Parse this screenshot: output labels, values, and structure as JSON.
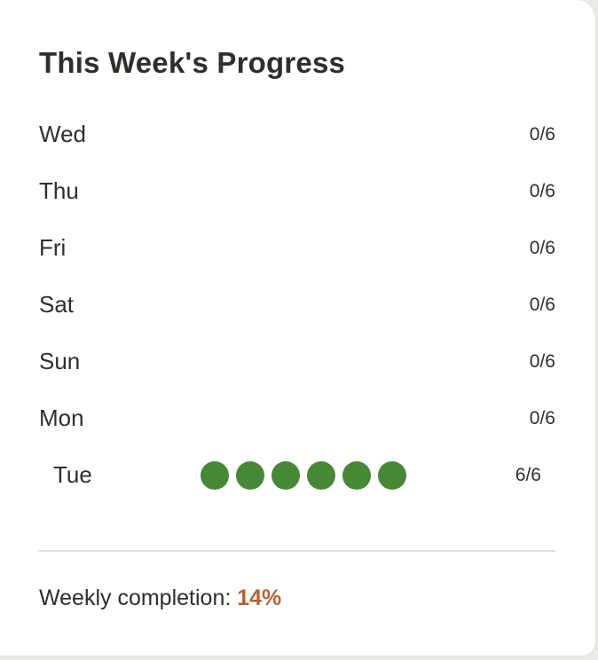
{
  "card": {
    "title": "This Week's Progress"
  },
  "days": [
    {
      "label": "Wed",
      "count": "0/6",
      "done": 0
    },
    {
      "label": "Thu",
      "count": "0/6",
      "done": 0
    },
    {
      "label": "Fri",
      "count": "0/6",
      "done": 0
    },
    {
      "label": "Sat",
      "count": "0/6",
      "done": 0
    },
    {
      "label": "Sun",
      "count": "0/6",
      "done": 0
    },
    {
      "label": "Mon",
      "count": "0/6",
      "done": 0
    },
    {
      "label": "Tue",
      "count": "6/6",
      "done": 6
    }
  ],
  "summary": {
    "label": "Weekly completion:",
    "value": "14%"
  },
  "colors": {
    "dot": "#478835",
    "accent": "#b8612f",
    "text": "#2d2f2b"
  }
}
